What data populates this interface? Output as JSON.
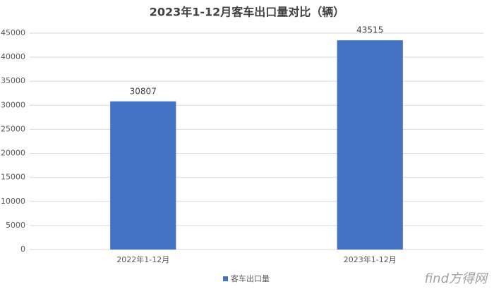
{
  "chart_data": {
    "type": "bar",
    "title": "2023年1-12月客车出口量对比（辆）",
    "categories": [
      "2022年1-12月",
      "2023年1-12月"
    ],
    "series": [
      {
        "name": "客车出口量",
        "color": "#4472c4",
        "values": [
          30807,
          43515
        ]
      }
    ],
    "ylim": [
      0,
      45000
    ],
    "yticks": [
      0,
      5000,
      10000,
      15000,
      20000,
      25000,
      30000,
      35000,
      40000,
      45000
    ],
    "grid": true,
    "legend": "bottom",
    "watermark": "find方得网"
  }
}
